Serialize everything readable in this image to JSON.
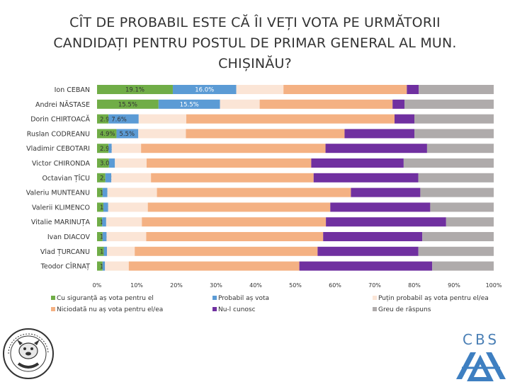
{
  "title": "CÎT DE PROBABIL ESTE CĂ ÎI VEȚI VOTA PE URMĂTORII\nCANDIDAȚI PENTRU POSTUL DE PRIMAR GENERAL AL MUN.\nCHIȘINĂU?",
  "chart_data": {
    "type": "bar",
    "orientation": "horizontal",
    "stacked": "percent",
    "title": "CÎT DE PROBABIL ESTE CĂ ÎI VEȚI VOTA PE URMĂTORII CANDIDAȚI PENTRU POSTUL DE PRIMAR GENERAL AL MUN. CHIȘINĂU?",
    "categories": [
      "Ion CEBAN",
      "Andrei NĂSTASE",
      "Dorin CHIRTOACĂ",
      "Ruslan CODREANU",
      "Vladimir CEBOTARI",
      "Victor CHIRONDA",
      "Octavian ȚÎCU",
      "Valeriu MUNTEANU",
      "Valerii KLIMENCO",
      "Vitalie MARINUȚA",
      "Ivan DIACOV",
      "Vlad ȚURCANU",
      "Teodor CÎRNAȚ"
    ],
    "xlim": [
      0,
      100
    ],
    "xticks": [
      "0%",
      "10%",
      "20%",
      "30%",
      "40%",
      "50%",
      "60%",
      "70%",
      "80%",
      "90%",
      "100%"
    ],
    "grid": false,
    "legend_position": "bottom",
    "series": [
      {
        "name": "Cu siguranță aș vota pentru el",
        "color": "#70ad47",
        "values": [
          19.1,
          15.5,
          2.9,
          4.9,
          2.9,
          3.0,
          2.1,
          1.4,
          1.6,
          1.3,
          1.4,
          1.7,
          1.4
        ],
        "labels": [
          "19.1%",
          "15.5%",
          "2.9%",
          "4.9%",
          "2.9%",
          "3.0%",
          "2.1%",
          "1.4%",
          "1.6%",
          "1.3%",
          "1.4%",
          "1.7%",
          "1.4%"
        ]
      },
      {
        "name": "Probabil aș vota",
        "color": "#5b9bd5",
        "values": [
          16.0,
          15.5,
          7.6,
          5.5,
          0.8,
          1.5,
          1.5,
          1.2,
          1.2,
          1.0,
          1.0,
          0.8,
          0.6
        ],
        "labels": [
          "16.0%",
          "15.5%",
          "7.6%",
          "5.5%",
          "",
          "",
          "",
          "",
          "",
          "",
          "",
          "",
          ""
        ]
      },
      {
        "name": "Puțin probabil aș vota pentru el/ea",
        "color": "#fbe5d6",
        "values": [
          11.9,
          10.0,
          12.0,
          12.0,
          7.4,
          8.0,
          10.0,
          12.5,
          10.0,
          9.0,
          10.0,
          7.0,
          6.0
        ],
        "labels": [
          "",
          "",
          "",
          "",
          "",
          "",
          "",
          "",
          "",
          "",
          "",
          "",
          ""
        ]
      },
      {
        "name": "Niciodată nu aș vota pentru el/ea",
        "color": "#f4b183",
        "values": [
          31.1,
          33.5,
          52.5,
          40.0,
          46.5,
          41.5,
          41.0,
          48.9,
          46.0,
          46.4,
          44.6,
          46.1,
          43.0
        ],
        "labels": [
          "",
          "",
          "",
          "",
          "",
          "",
          "",
          "",
          "",
          "",
          "",
          "",
          ""
        ]
      },
      {
        "name": "Nu-l cunosc",
        "color": "#7030a0",
        "values": [
          3.0,
          3.0,
          5.0,
          17.6,
          25.6,
          23.3,
          26.4,
          17.5,
          25.2,
          30.3,
          25.0,
          25.4,
          33.5
        ],
        "labels": [
          "",
          "",
          "",
          "",
          "",
          "",
          "",
          "",
          "",
          "",
          "",
          "",
          ""
        ]
      },
      {
        "name": "Greu de răspuns",
        "color": "#afabab",
        "values": [
          18.9,
          22.5,
          20.0,
          20.0,
          16.8,
          22.7,
          19.0,
          18.5,
          16.0,
          12.0,
          18.0,
          19.0,
          15.5
        ],
        "labels": [
          "",
          "",
          "",
          "",
          "",
          "",
          "",
          "",
          "",
          "",
          "",
          "",
          ""
        ]
      }
    ]
  },
  "logos": {
    "watchdog_icon": "watchdog-seal-icon",
    "cbs_icon": "cbs-axa-logo-icon",
    "cbs_text": "CBS"
  }
}
